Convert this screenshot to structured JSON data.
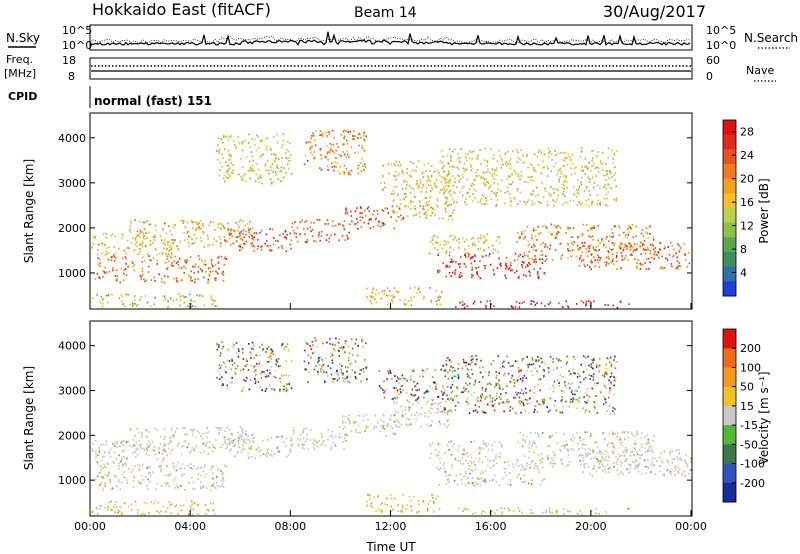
{
  "header": {
    "site": "Hokkaido East (fitACF)",
    "beam": "Beam 14",
    "date": "30/Aug/2017"
  },
  "status_panels": {
    "nsky_label": "N.Sky",
    "nsky_ticks": [
      "10^5",
      "10^0"
    ],
    "nsearch_label": "N.Search",
    "nsearch_ticks": [
      "10^5",
      "10^0"
    ],
    "freq_label": [
      "Freq.",
      "[MHz]"
    ],
    "freq_ticks": [
      "18",
      "8"
    ],
    "nave_label": "Nave",
    "nave_ticks": [
      "60",
      "0"
    ],
    "cpid_label": "CPID",
    "cpid_value": "normal (fast) 151"
  },
  "chart_data": [
    {
      "type": "heatmap",
      "name": "power",
      "xlabel": "",
      "ylabel": "Slant Range [km]",
      "x_ticks": [
        "00:00",
        "04:00",
        "08:00",
        "12:00",
        "16:00",
        "20:00",
        "00:00"
      ],
      "xlim_hours": [
        0,
        24
      ],
      "y_ticks": [
        1000,
        2000,
        3000,
        4000
      ],
      "ylim": [
        200,
        4550
      ],
      "colorbar": {
        "label": "Power [dB]",
        "ticks": [
          "4",
          "8",
          "12",
          "16",
          "20",
          "24",
          "28"
        ],
        "range": [
          0,
          30
        ],
        "colors": [
          "#1f3fd8",
          "#2f6fb0",
          "#3b8f5a",
          "#5aa84a",
          "#8bc34a",
          "#b8d24a",
          "#f2c029",
          "#f4a21d",
          "#f07a1d",
          "#e8521e",
          "#e32b1b",
          "#e0110f"
        ]
      }
    },
    {
      "type": "heatmap",
      "name": "velocity",
      "xlabel": "Time UT",
      "ylabel": "Slant Range [km]",
      "x_ticks": [
        "00:00",
        "04:00",
        "08:00",
        "12:00",
        "16:00",
        "20:00",
        "00:00"
      ],
      "xlim_hours": [
        0,
        24
      ],
      "y_ticks": [
        1000,
        2000,
        3000,
        4000
      ],
      "ylim": [
        200,
        4550
      ],
      "colorbar": {
        "label": "Velocity [m s⁻¹]",
        "ticks": [
          "200",
          "100",
          "50",
          "15",
          "-15",
          "-50",
          "-100",
          "-200"
        ],
        "colors": [
          "#1a2a9a",
          "#2f54c0",
          "#3b7a4a",
          "#52b83a",
          "#c8c8c8",
          "#f2c029",
          "#f39a1a",
          "#f06a18",
          "#e0110f"
        ]
      }
    }
  ],
  "scatter_regions": [
    {
      "t0": 0.0,
      "t1": 5.4,
      "r0": 800,
      "r1": 1400,
      "pw": [
        18,
        26
      ],
      "vel": "grey"
    },
    {
      "t0": 0.0,
      "t1": 3.5,
      "r0": 1400,
      "r1": 1900,
      "pw": [
        12,
        20
      ],
      "vel": "grey"
    },
    {
      "t0": 1.5,
      "t1": 6.5,
      "r0": 1600,
      "r1": 2200,
      "pw": [
        14,
        22
      ],
      "vel": "grey"
    },
    {
      "t0": 5.3,
      "t1": 8.0,
      "r0": 1500,
      "r1": 2000,
      "pw": [
        20,
        28
      ],
      "vel": "grey"
    },
    {
      "t0": 8.0,
      "t1": 10.3,
      "r0": 1700,
      "r1": 2200,
      "pw": [
        20,
        26
      ],
      "vel": "grey"
    },
    {
      "t0": 10.0,
      "t1": 12.5,
      "r0": 2000,
      "r1": 2500,
      "pw": [
        20,
        28
      ],
      "vel": "grey"
    },
    {
      "t0": 12.0,
      "t1": 14.5,
      "r0": 2200,
      "r1": 2800,
      "pw": [
        12,
        22
      ],
      "vel": "grey"
    },
    {
      "t0": 13.8,
      "t1": 18.2,
      "r0": 900,
      "r1": 1450,
      "pw": [
        22,
        30
      ],
      "vel": "grey"
    },
    {
      "t0": 13.5,
      "t1": 16.5,
      "r0": 1450,
      "r1": 1900,
      "pw": [
        12,
        20
      ],
      "vel": "grey"
    },
    {
      "t0": 17.0,
      "t1": 22.5,
      "r0": 1300,
      "r1": 2100,
      "pw": [
        16,
        26
      ],
      "vel": "grey"
    },
    {
      "t0": 19.5,
      "t1": 24.0,
      "r0": 1100,
      "r1": 1700,
      "pw": [
        18,
        28
      ],
      "vel": "grey"
    },
    {
      "t0": 14.5,
      "t1": 21.5,
      "r0": 250,
      "r1": 400,
      "pw": [
        24,
        30
      ],
      "vel": "orange"
    },
    {
      "t0": 0.0,
      "t1": 5.0,
      "r0": 250,
      "r1": 550,
      "pw": [
        8,
        18
      ],
      "vel": "orange"
    },
    {
      "t0": 8.5,
      "t1": 11.0,
      "r0": 3200,
      "r1": 4200,
      "pw": [
        16,
        26
      ],
      "vel": "mixed"
    },
    {
      "t0": 5.0,
      "t1": 8.0,
      "r0": 3000,
      "r1": 4100,
      "pw": [
        10,
        18
      ],
      "vel": "mixed"
    },
    {
      "t0": 11.5,
      "t1": 14.5,
      "r0": 2800,
      "r1": 3500,
      "pw": [
        12,
        20
      ],
      "vel": "mixed"
    },
    {
      "t0": 14.0,
      "t1": 21.0,
      "r0": 2500,
      "r1": 3800,
      "pw": [
        10,
        18
      ],
      "vel": "mixed"
    },
    {
      "t0": 11.0,
      "t1": 14.0,
      "r0": 300,
      "r1": 700,
      "pw": [
        14,
        22
      ],
      "vel": "orange"
    }
  ]
}
